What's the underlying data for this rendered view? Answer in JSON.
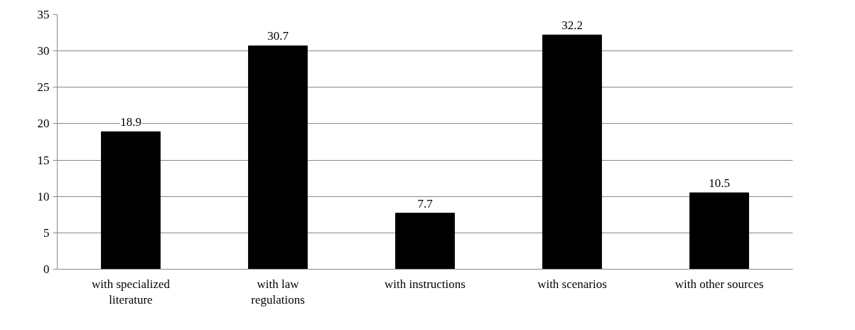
{
  "chart_data": {
    "type": "bar",
    "categories": [
      "with specialized\nliterature",
      "with law\nregulations",
      "with instructions",
      "with scenarios",
      "with other sources"
    ],
    "values": [
      18.9,
      30.7,
      7.7,
      32.2,
      10.5
    ],
    "color": "#000000",
    "ylim": [
      0,
      35
    ],
    "yticks": [
      0,
      5,
      10,
      15,
      20,
      25,
      30,
      35
    ],
    "grid": "y",
    "data_labels": true
  }
}
